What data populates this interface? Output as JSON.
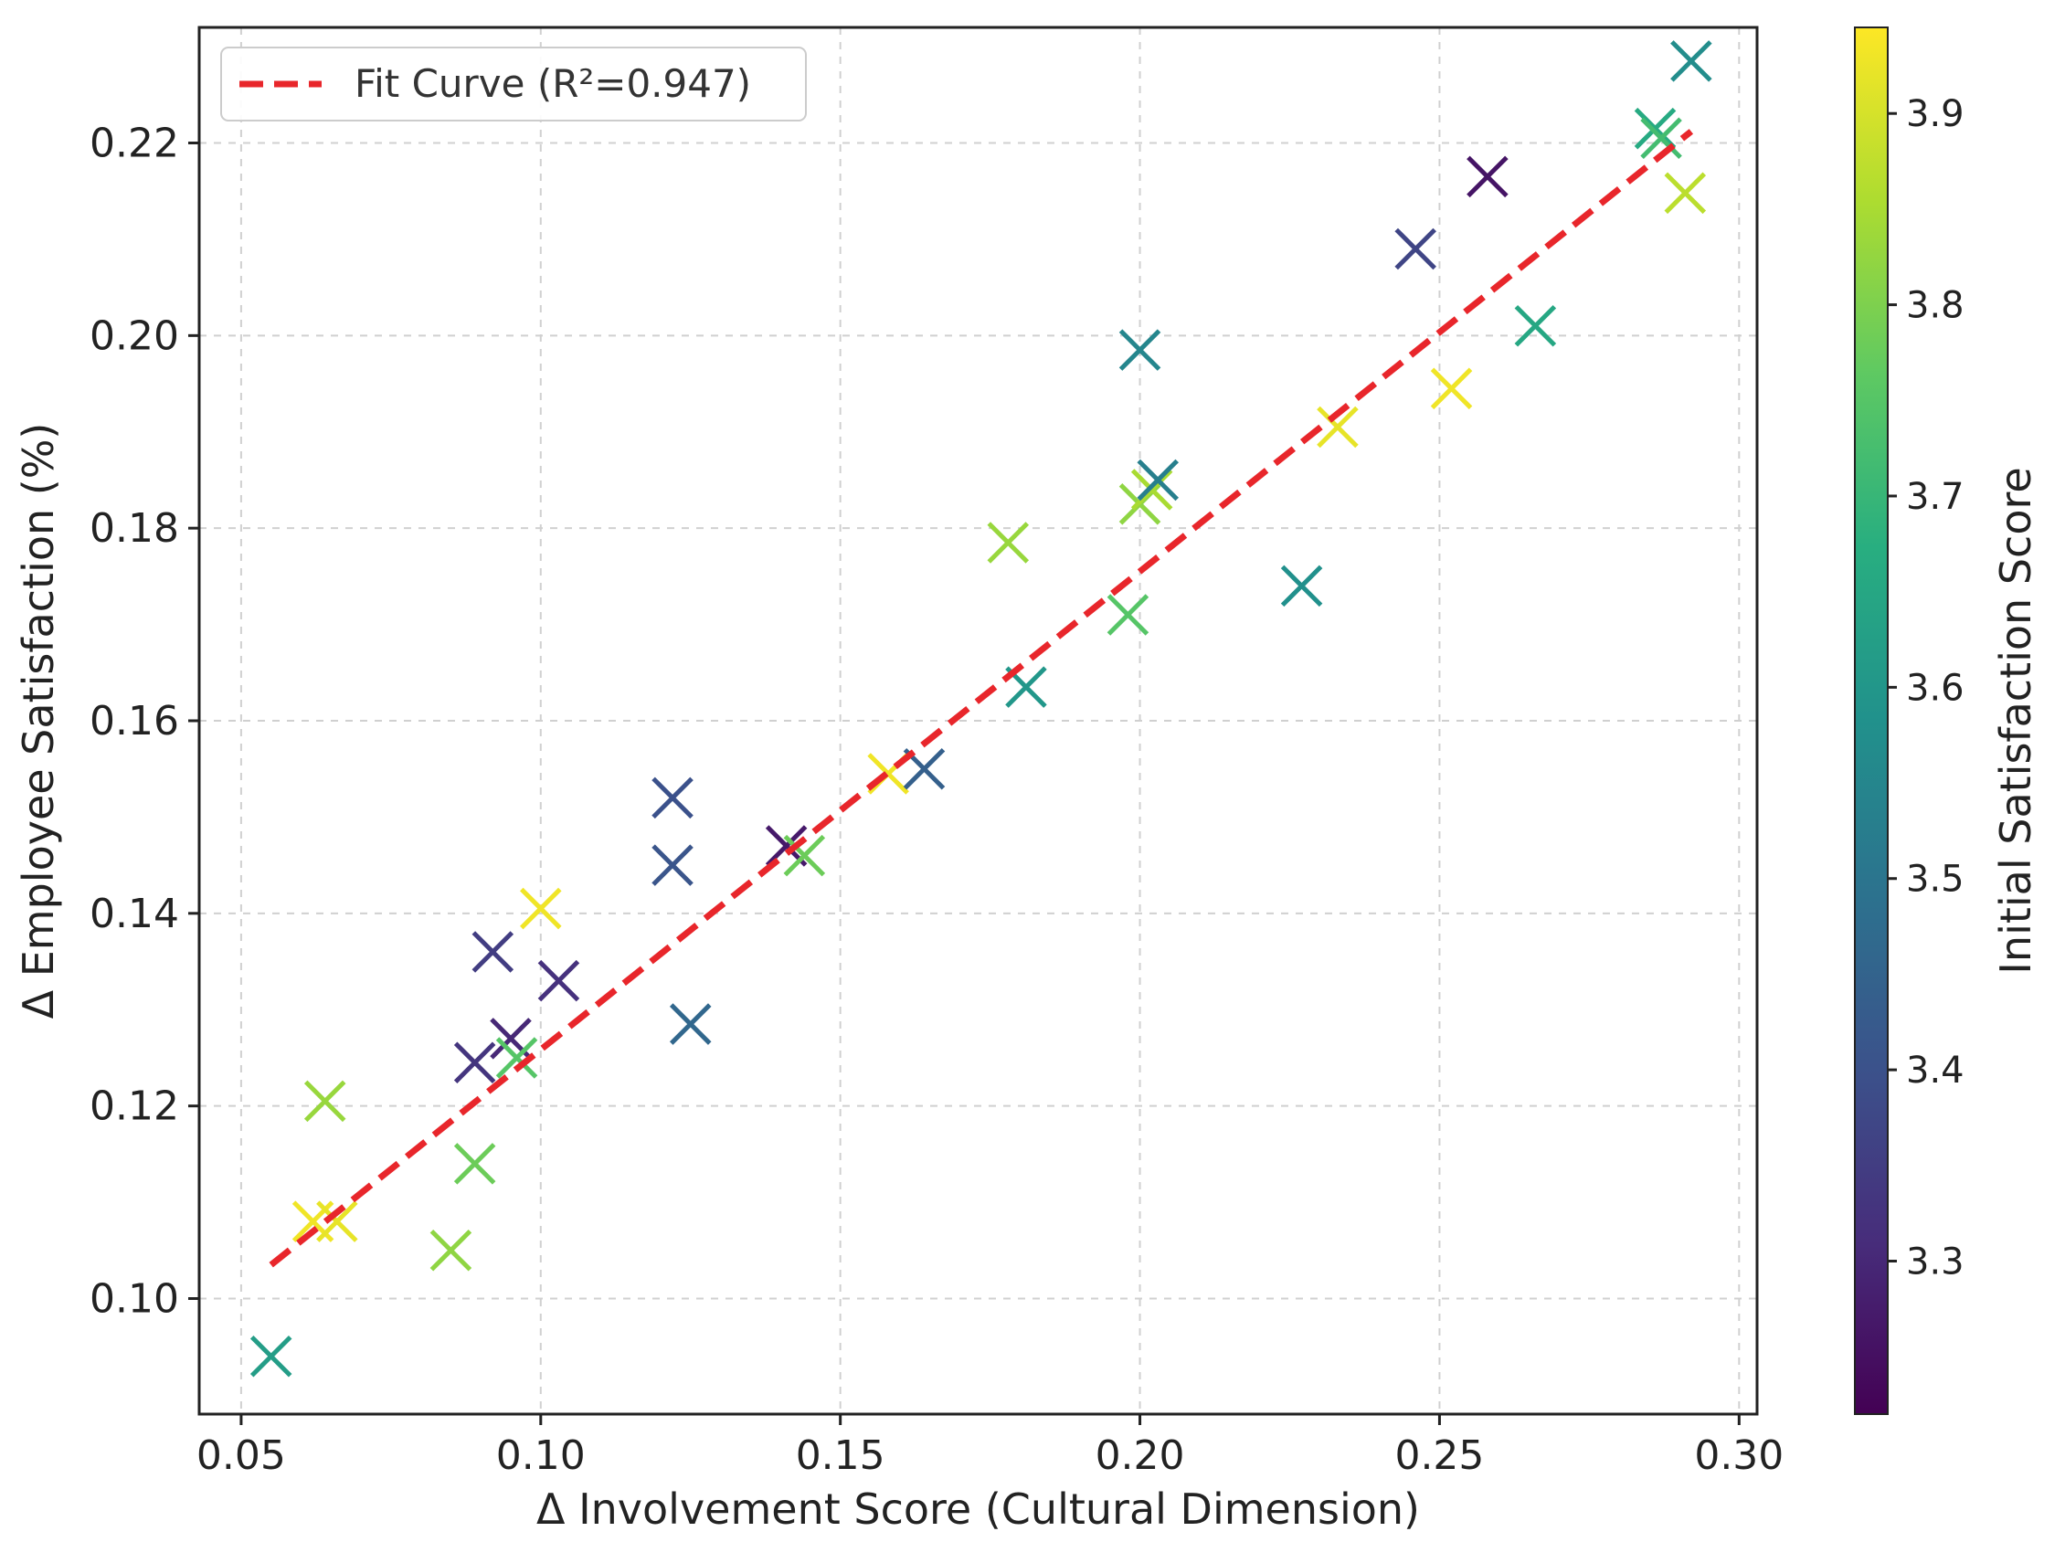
{
  "chart_data": {
    "type": "scatter",
    "xlabel": "Δ Involvement Score (Cultural Dimension)",
    "ylabel": "Δ Employee Satisfaction (%)",
    "xlim": [
      0.043,
      0.303
    ],
    "ylim": [
      0.088,
      0.232
    ],
    "xticks": [
      "0.05",
      "0.10",
      "0.15",
      "0.20",
      "0.25",
      "0.30"
    ],
    "yticks": [
      "0.10",
      "0.12",
      "0.14",
      "0.16",
      "0.18",
      "0.20",
      "0.22"
    ],
    "grid": true,
    "marker": "x",
    "legend": {
      "position": "top-left",
      "entries": [
        "Fit Curve (R²=0.947)"
      ]
    },
    "fit_line": {
      "x": [
        0.055,
        0.292
      ],
      "y": [
        0.1035,
        0.2212
      ],
      "color": "#e8262b",
      "style": "dashed"
    },
    "colorbar": {
      "label": "Initial Satisfaction Score",
      "range": [
        3.22,
        3.945
      ],
      "ticks": [
        "3.3",
        "3.4",
        "3.5",
        "3.6",
        "3.7",
        "3.8",
        "3.9"
      ],
      "colormap": "viridis"
    },
    "points": [
      {
        "x": 0.055,
        "y": 0.094,
        "c": 3.62
      },
      {
        "x": 0.062,
        "y": 0.108,
        "c": 3.93
      },
      {
        "x": 0.064,
        "y": 0.1205,
        "c": 3.83
      },
      {
        "x": 0.066,
        "y": 0.108,
        "c": 3.92
      },
      {
        "x": 0.085,
        "y": 0.105,
        "c": 3.82
      },
      {
        "x": 0.089,
        "y": 0.114,
        "c": 3.78
      },
      {
        "x": 0.089,
        "y": 0.1245,
        "c": 3.33
      },
      {
        "x": 0.092,
        "y": 0.136,
        "c": 3.35
      },
      {
        "x": 0.095,
        "y": 0.127,
        "c": 3.3
      },
      {
        "x": 0.096,
        "y": 0.125,
        "c": 3.75
      },
      {
        "x": 0.1,
        "y": 0.1405,
        "c": 3.93
      },
      {
        "x": 0.103,
        "y": 0.133,
        "c": 3.32
      },
      {
        "x": 0.122,
        "y": 0.152,
        "c": 3.4
      },
      {
        "x": 0.122,
        "y": 0.145,
        "c": 3.41
      },
      {
        "x": 0.125,
        "y": 0.1285,
        "c": 3.46
      },
      {
        "x": 0.141,
        "y": 0.147,
        "c": 3.27
      },
      {
        "x": 0.144,
        "y": 0.146,
        "c": 3.78
      },
      {
        "x": 0.158,
        "y": 0.1545,
        "c": 3.93
      },
      {
        "x": 0.164,
        "y": 0.155,
        "c": 3.44
      },
      {
        "x": 0.178,
        "y": 0.1785,
        "c": 3.83
      },
      {
        "x": 0.181,
        "y": 0.1635,
        "c": 3.6
      },
      {
        "x": 0.198,
        "y": 0.171,
        "c": 3.75
      },
      {
        "x": 0.2,
        "y": 0.1985,
        "c": 3.55
      },
      {
        "x": 0.2,
        "y": 0.1825,
        "c": 3.82
      },
      {
        "x": 0.202,
        "y": 0.184,
        "c": 3.85
      },
      {
        "x": 0.203,
        "y": 0.185,
        "c": 3.53
      },
      {
        "x": 0.227,
        "y": 0.174,
        "c": 3.58
      },
      {
        "x": 0.233,
        "y": 0.1905,
        "c": 3.92
      },
      {
        "x": 0.246,
        "y": 0.209,
        "c": 3.37
      },
      {
        "x": 0.252,
        "y": 0.1945,
        "c": 3.93
      },
      {
        "x": 0.258,
        "y": 0.2165,
        "c": 3.26
      },
      {
        "x": 0.266,
        "y": 0.201,
        "c": 3.65
      },
      {
        "x": 0.286,
        "y": 0.2215,
        "c": 3.66
      },
      {
        "x": 0.287,
        "y": 0.2205,
        "c": 3.72
      },
      {
        "x": 0.291,
        "y": 0.2148,
        "c": 3.87
      },
      {
        "x": 0.292,
        "y": 0.2285,
        "c": 3.57
      }
    ]
  }
}
